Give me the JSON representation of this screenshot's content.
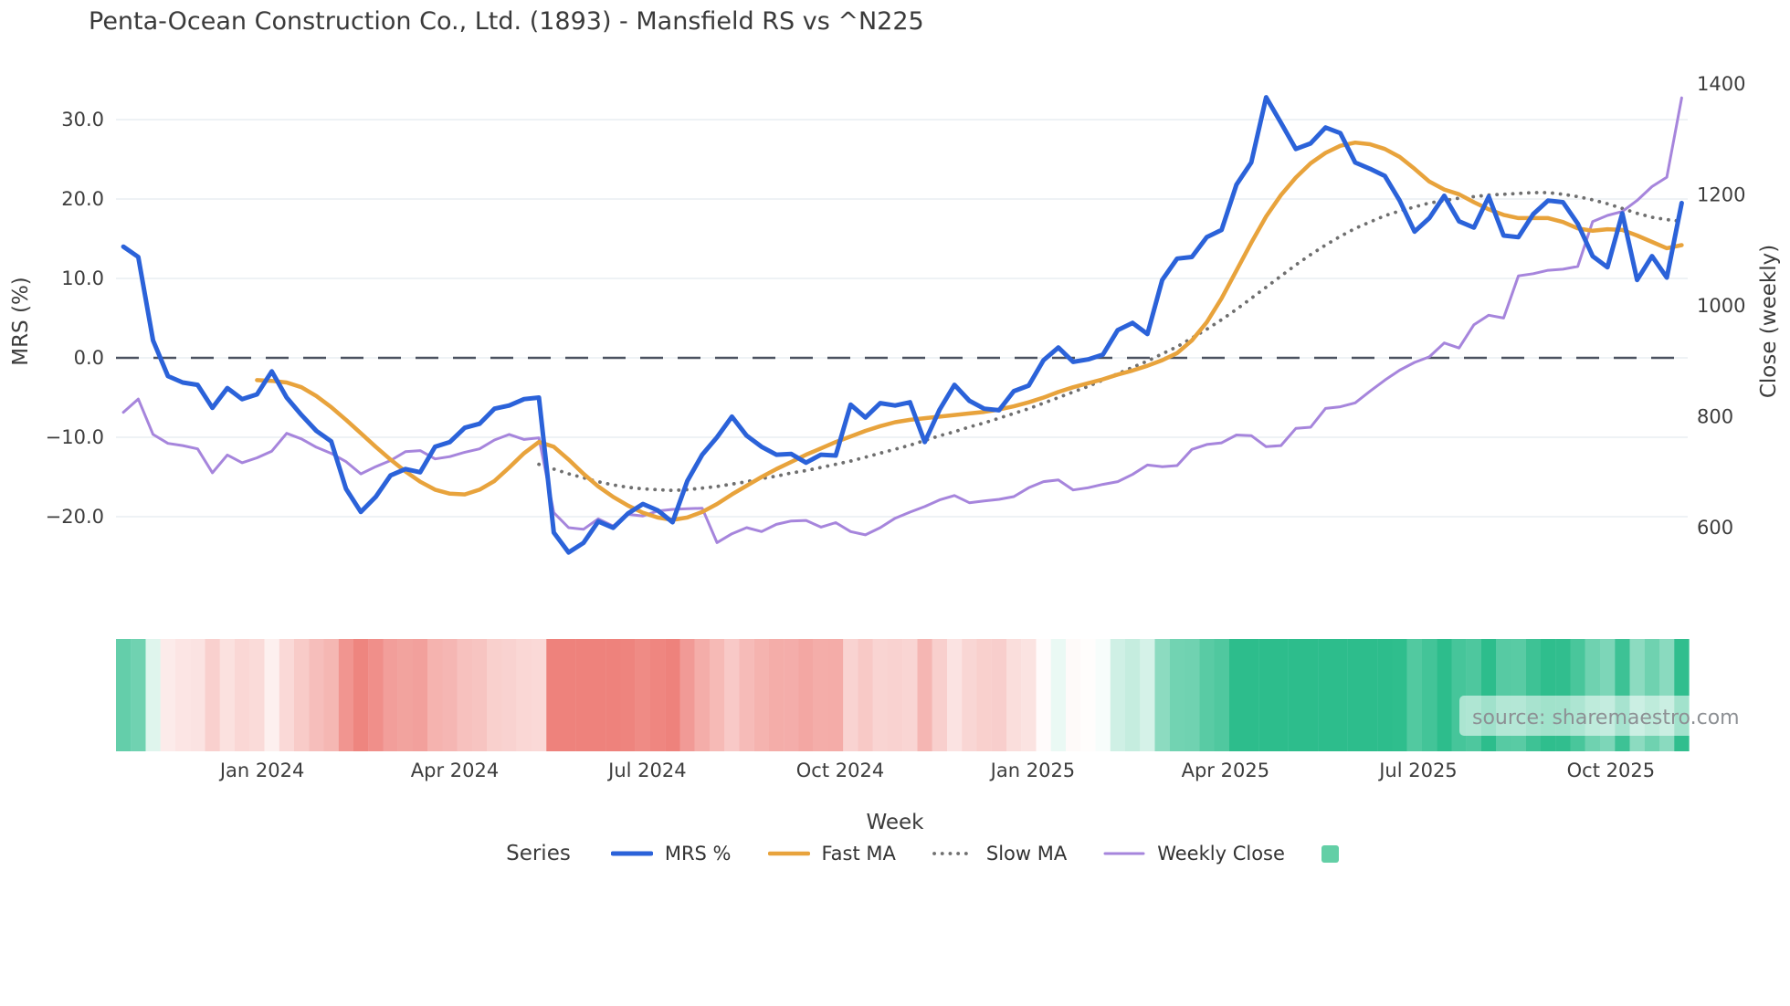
{
  "title": "Penta-Ocean Construction Co., Ltd. (1893) - Mansfield RS vs ^N225",
  "watermark": "source: sharemaestro.com",
  "chart_data": {
    "type": "line",
    "title": "Penta-Ocean Construction Co., Ltd. (1893) - Mansfield RS vs ^N225",
    "grid": true,
    "legend_position": "bottom-center",
    "x_axis": {
      "label": "Week",
      "tick_labels": [
        "Jan 2024",
        "Apr 2024",
        "Jul 2024",
        "Oct 2024",
        "Jan 2025",
        "Apr 2025",
        "Jul 2025",
        "Oct 2025"
      ],
      "tick_weeks": [
        9.35,
        22.33,
        35.31,
        48.3,
        61.28,
        74.26,
        87.25,
        100.23
      ],
      "total_weeks": 106
    },
    "y_left": {
      "label": "MRS (%)",
      "tick_values": [
        30,
        20,
        10,
        0,
        -10,
        -20
      ],
      "tick_labels": [
        "30.0",
        "20.0",
        "10.0",
        "0.0",
        "−10.0",
        "−20.0"
      ],
      "approx_range": [
        -29,
        37
      ]
    },
    "y_right": {
      "label": "Close (weekly)",
      "tick_values": [
        1400,
        1200,
        1000,
        800,
        600
      ],
      "tick_labels": [
        "1400",
        "1200",
        "1000",
        "800",
        "600"
      ],
      "approx_range": [
        482,
        1436
      ]
    },
    "zero_line": {
      "value": 0,
      "style": "dashed",
      "color": "#4b5260"
    },
    "series": [
      {
        "name": "MRS %",
        "axis": "left",
        "color": "#2b62d9",
        "style": "solid",
        "width": 5,
        "start_week": 0,
        "values": [
          14.0,
          12.7,
          2.2,
          -2.3,
          -3.1,
          -3.4,
          -6.3,
          -3.8,
          -5.2,
          -4.6,
          -1.7,
          -5.0,
          -7.2,
          -9.2,
          -10.5,
          -16.5,
          -19.4,
          -17.5,
          -14.8,
          -14.0,
          -14.4,
          -11.2,
          -10.6,
          -8.8,
          -8.3,
          -6.4,
          -6.0,
          -5.2,
          -5.0,
          -22.0,
          -24.5,
          -23.3,
          -20.6,
          -21.4,
          -19.6,
          -18.4,
          -19.2,
          -20.7,
          -15.5,
          -12.2,
          -10.0,
          -7.4,
          -9.8,
          -11.2,
          -12.2,
          -12.1,
          -13.2,
          -12.2,
          -12.3,
          -5.9,
          -7.5,
          -5.7,
          -6.0,
          -5.6,
          -10.6,
          -6.5,
          -3.4,
          -5.4,
          -6.4,
          -6.6,
          -4.2,
          -3.5,
          -0.3,
          1.3,
          -0.5,
          -0.2,
          0.4,
          3.5,
          4.4,
          3.0,
          9.8,
          12.5,
          12.7,
          15.2,
          16.1,
          21.8,
          24.6,
          32.8,
          29.6,
          26.3,
          27.0,
          29.0,
          28.3,
          24.6,
          23.8,
          22.9,
          19.8,
          15.9,
          17.6,
          20.4,
          17.2,
          16.4,
          20.3,
          15.4,
          15.2,
          18.1,
          19.8,
          19.6,
          16.9,
          12.8,
          11.4,
          18.2,
          9.8,
          12.8,
          10.1,
          19.5
        ]
      },
      {
        "name": "Fast MA",
        "axis": "left",
        "color": "#e8a33c",
        "style": "solid",
        "width": 4.5,
        "start_week": 9,
        "values": [
          -2.8,
          -2.9,
          -3.1,
          -3.7,
          -4.8,
          -6.2,
          -7.8,
          -9.5,
          -11.2,
          -12.8,
          -14.3,
          -15.6,
          -16.6,
          -17.1,
          -17.2,
          -16.6,
          -15.5,
          -13.8,
          -12.0,
          -10.6,
          -11.2,
          -12.8,
          -14.6,
          -16.2,
          -17.5,
          -18.6,
          -19.5,
          -20.1,
          -20.4,
          -20.1,
          -19.4,
          -18.4,
          -17.2,
          -16.1,
          -15.0,
          -14.0,
          -13.1,
          -12.2,
          -11.4,
          -10.6,
          -9.9,
          -9.2,
          -8.6,
          -8.1,
          -7.8,
          -7.6,
          -7.4,
          -7.2,
          -7.0,
          -6.8,
          -6.5,
          -6.1,
          -5.6,
          -5.0,
          -4.3,
          -3.7,
          -3.2,
          -2.7,
          -2.1,
          -1.6,
          -1.0,
          -0.3,
          0.6,
          2.2,
          4.5,
          7.5,
          11.0,
          14.5,
          17.8,
          20.5,
          22.7,
          24.5,
          25.8,
          26.7,
          27.1,
          26.9,
          26.3,
          25.3,
          23.8,
          22.2,
          21.2,
          20.6,
          19.6,
          18.7,
          18.0,
          17.6,
          17.6,
          17.6,
          17.1,
          16.3,
          16.0,
          16.2,
          16.1,
          15.4,
          14.6,
          13.8,
          14.2
        ]
      },
      {
        "name": "Slow MA",
        "axis": "left",
        "color": "#6f6f6f",
        "style": "dotted",
        "width": 3.8,
        "start_week": 28,
        "values": [
          -13.4,
          -14.0,
          -14.6,
          -15.1,
          -15.6,
          -16.0,
          -16.3,
          -16.5,
          -16.6,
          -16.7,
          -16.6,
          -16.4,
          -16.2,
          -15.9,
          -15.6,
          -15.2,
          -14.9,
          -14.5,
          -14.2,
          -13.8,
          -13.4,
          -13.0,
          -12.5,
          -12.0,
          -11.5,
          -11.0,
          -10.4,
          -9.8,
          -9.3,
          -8.7,
          -8.2,
          -7.6,
          -7.0,
          -6.4,
          -5.7,
          -5.0,
          -4.3,
          -3.6,
          -2.8,
          -2.0,
          -1.2,
          -0.4,
          0.5,
          1.4,
          2.5,
          3.6,
          4.8,
          6.1,
          7.5,
          8.9,
          10.3,
          11.7,
          13.0,
          14.2,
          15.3,
          16.3,
          17.1,
          17.9,
          18.5,
          19.0,
          19.5,
          19.8,
          20.1,
          20.3,
          20.5,
          20.6,
          20.7,
          20.8,
          20.8,
          20.6,
          20.3,
          19.9,
          19.4,
          18.8,
          18.2,
          17.7,
          17.4,
          17.2
        ]
      },
      {
        "name": "Weekly Close",
        "axis": "right",
        "color": "#a685dc",
        "style": "solid",
        "width": 3,
        "start_week": 0,
        "values": [
          808,
          832,
          768,
          752,
          748,
          742,
          699,
          731,
          717,
          726,
          738,
          770,
          760,
          745,
          734,
          719,
          697,
          710,
          721,
          737,
          739,
          724,
          728,
          736,
          742,
          758,
          768,
          759,
          762,
          627,
          600,
          597,
          616,
          603,
          624,
          621,
          630,
          633,
          634,
          635,
          573,
          589,
          600,
          593,
          606,
          612,
          613,
          601,
          609,
          593,
          587,
          600,
          617,
          628,
          638,
          650,
          658,
          645,
          648,
          651,
          656,
          672,
          683,
          686,
          668,
          672,
          678,
          683,
          696,
          713,
          710,
          712,
          741,
          750,
          753,
          767,
          766,
          746,
          748,
          779,
          781,
          815,
          818,
          825,
          846,
          866,
          884,
          898,
          908,
          933,
          924,
          966,
          983,
          978,
          1054,
          1058,
          1064,
          1066,
          1071,
          1152,
          1163,
          1170,
          1190,
          1215,
          1232,
          1375
        ]
      }
    ],
    "heatmap": {
      "description": "weekly strip colored by MRS % value",
      "source_series": "MRS %",
      "positive_color": "#2dbd8c",
      "negative_color": "#ee827c",
      "neutral_color": "#ffffff",
      "vmax": 20
    },
    "legend": {
      "title": "Series",
      "entries": [
        "MRS %",
        "Fast MA",
        "Slow MA",
        "Weekly Close"
      ],
      "heat_swatch_color": "#63cfa6"
    },
    "colors": {
      "gridline": "#e9edf2",
      "tick_text": "#3d3d3d",
      "title_text": "#3a3a3a",
      "watermark_text": "#8d9094"
    }
  }
}
